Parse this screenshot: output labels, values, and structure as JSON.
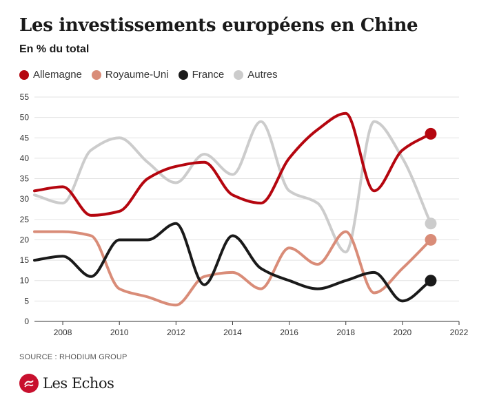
{
  "header": {
    "title": "Les investissements européens en Chine",
    "subtitle": "En % du total"
  },
  "footer": {
    "source": "SOURCE : RHODIUM GROUP",
    "brand": "Les Echos",
    "brand_color": "#c8102e"
  },
  "chart_data": {
    "type": "line",
    "title": "Les investissements européens en Chine",
    "subtitle": "En % du total",
    "x": [
      2007,
      2008,
      2009,
      2010,
      2011,
      2012,
      2013,
      2014,
      2015,
      2016,
      2017,
      2018,
      2019,
      2020,
      2021
    ],
    "series": [
      {
        "name": "Allemagne",
        "color": "#b5060f",
        "values": [
          32,
          33,
          26,
          27,
          35,
          38,
          39,
          31,
          29,
          40,
          47,
          51,
          32,
          42,
          46
        ]
      },
      {
        "name": "Royaume-Uni",
        "color": "#d98c78",
        "values": [
          22,
          22,
          21,
          8,
          6,
          4,
          11,
          12,
          8,
          18,
          14,
          22,
          7,
          13,
          20
        ]
      },
      {
        "name": "France",
        "color": "#1a1a1a",
        "values": [
          15,
          16,
          11,
          20,
          20,
          24,
          9,
          21,
          13,
          10,
          8,
          10,
          12,
          5,
          10
        ]
      },
      {
        "name": "Autres",
        "color": "#cccccc",
        "values": [
          31,
          29,
          42,
          45,
          39,
          34,
          41,
          36,
          49,
          32,
          29,
          17,
          49,
          40,
          24
        ]
      }
    ],
    "xlim": [
      2007,
      2022
    ],
    "ylim": [
      0,
      55
    ],
    "yticks": [
      0,
      5,
      10,
      15,
      20,
      25,
      30,
      35,
      40,
      45,
      50,
      55
    ],
    "xticks": [
      2008,
      2010,
      2012,
      2014,
      2016,
      2018,
      2020,
      2022
    ],
    "grid": true,
    "legend": "top-left",
    "end_markers": true
  }
}
